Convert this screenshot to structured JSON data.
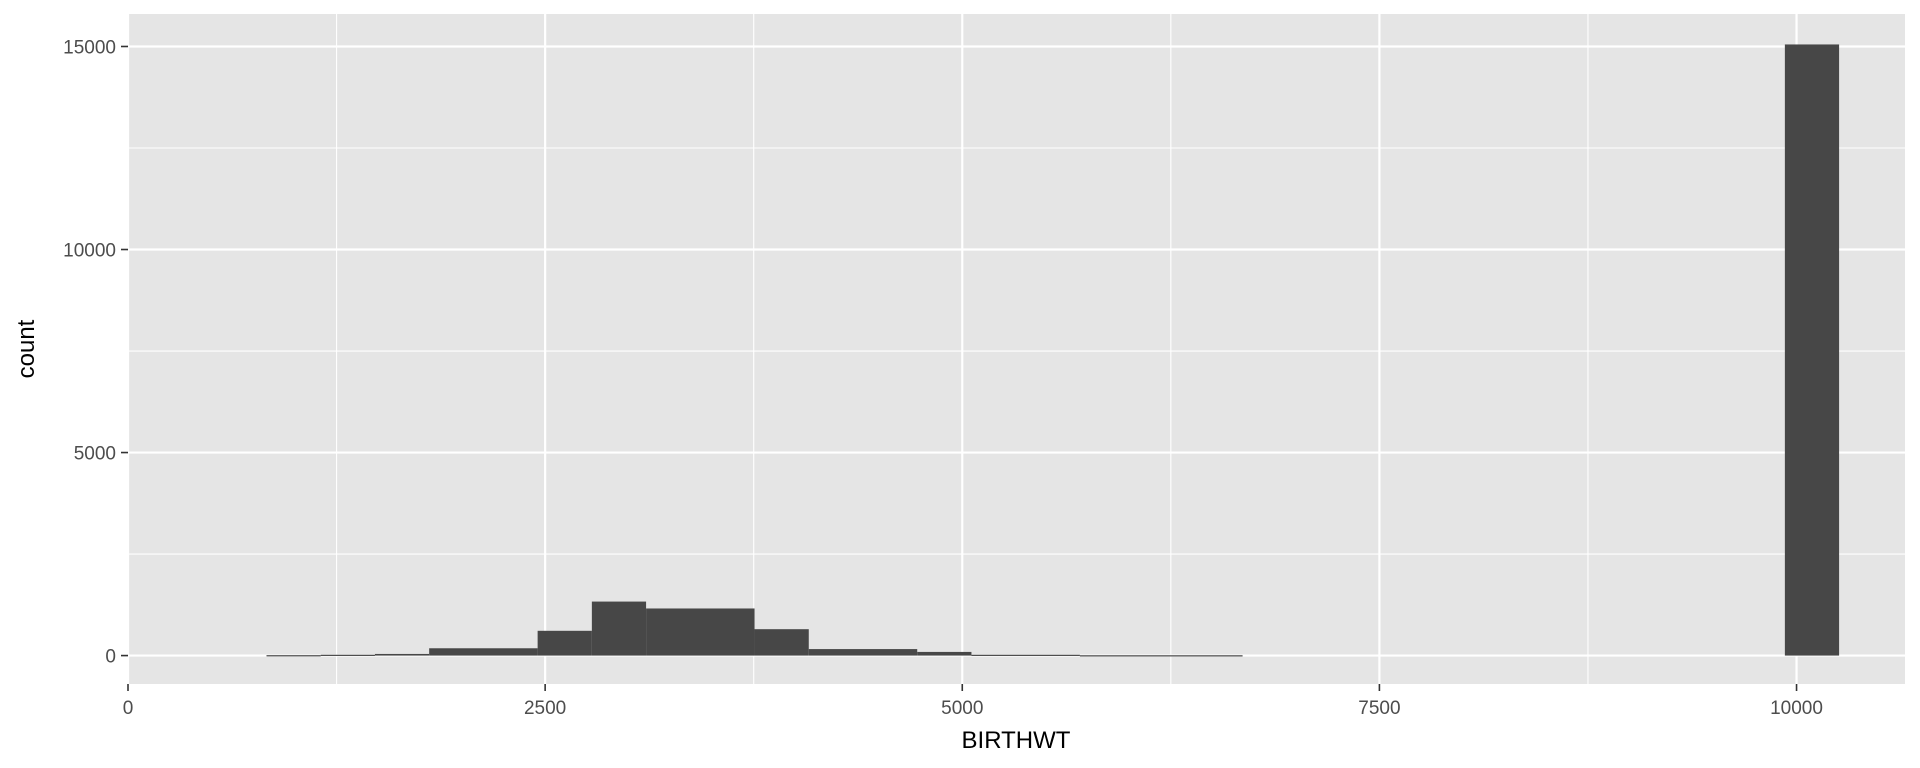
{
  "chart_data": {
    "type": "bar",
    "title": "",
    "xlabel": "BIRTHWT",
    "ylabel": "count",
    "xlim": [
      0,
      10650
    ],
    "ylim": [
      -700,
      15800
    ],
    "x_ticks": [
      0,
      2500,
      5000,
      7500,
      10000
    ],
    "x_tick_labels": [
      "0",
      "2500",
      "5000",
      "7500",
      "10000"
    ],
    "y_ticks": [
      0,
      5000,
      10000,
      15000
    ],
    "y_tick_labels": [
      "0",
      "5000",
      "10000",
      "15000"
    ],
    "grid": true,
    "legend": "none",
    "colors": {
      "panel": "#e5e5e5",
      "grid_major": "#ffffff",
      "bar": "#474747",
      "tick_text": "#4d4d4d"
    },
    "bins": [
      {
        "x0": 830,
        "x1": 1155,
        "count": 10
      },
      {
        "x0": 1155,
        "x1": 1480,
        "count": 20
      },
      {
        "x0": 1480,
        "x1": 1805,
        "count": 40
      },
      {
        "x0": 1805,
        "x1": 2455,
        "count": 180
      },
      {
        "x0": 2455,
        "x1": 2780,
        "count": 610
      },
      {
        "x0": 2780,
        "x1": 3105,
        "count": 1330
      },
      {
        "x0": 3105,
        "x1": 3755,
        "count": 1160
      },
      {
        "x0": 3755,
        "x1": 4080,
        "count": 650
      },
      {
        "x0": 4080,
        "x1": 4730,
        "count": 160
      },
      {
        "x0": 4730,
        "x1": 5055,
        "count": 90
      },
      {
        "x0": 5055,
        "x1": 5705,
        "count": 20
      },
      {
        "x0": 5705,
        "x1": 6680,
        "count": 8
      },
      {
        "x0": 9930,
        "x1": 10255,
        "count": 15050
      }
    ]
  }
}
